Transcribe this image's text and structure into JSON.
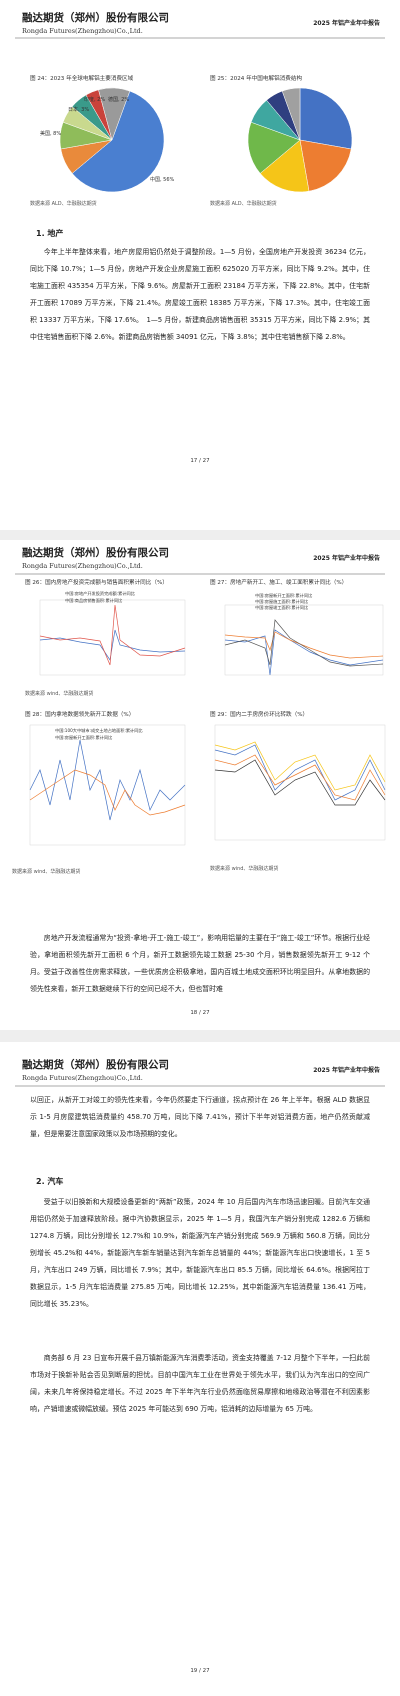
{
  "pages": [
    {
      "header": {
        "company_cn": "融达期货（郑州）股份有限公司",
        "company_en": "Rongda Futures(Zhengzhou)Co.,Ltd.",
        "report": "2025 年铝产业年中报告"
      },
      "figures": [
        {
          "caption": "图 24：2023 年全球电解铝主要消费区域",
          "labels": [
            "中国, 56%",
            "美国, 8%",
            "日本, 3%",
            "印度, 2%",
            "德国, 2%"
          ],
          "source": "数据来源 ALD、华融融达期货"
        },
        {
          "caption": "图 25：2024 年中国电解铝消费结构",
          "source": "数据来源 ALD、华融融达期货"
        }
      ],
      "section": "1. 地产",
      "paragraphs": [
        "今年上半年整体来看，地产房屋用铝仍然处于调整阶段。1—5 月份，全国房地产开发投资 36234 亿元，同比下降 10.7%；1—5 月份，房地产开发企业房屋施工面积 625020 万平方米，同比下降 9.2%。其中，住宅施工面积 435354 万平方米，下降 9.6%。房屋新开工面积 23184 万平方米，下降 22.8%。其中，住宅新开工面积 17089 万平方米，下降 21.4%。房屋竣工面积 18385 万平方米，下降 17.3%。其中，住宅竣工面积 13337 万平方米，下降 17.6%。　1—5 月份，新建商品房销售面积 35315 万平方米，同比下降 2.9%；其中住宅销售面积下降 2.6%。新建商品房销售额 34091 亿元，下降 3.8%；其中住宅销售额下降 2.8%。"
      ],
      "page_number": "17 / 27"
    },
    {
      "header": {
        "company_cn": "融达期货（郑州）股份有限公司",
        "company_en": "Rongda Futures(Zhengzhou)Co.,Ltd.",
        "report": "2025 年铝产业年中报告"
      },
      "figures": [
        {
          "caption": "图 26：国内房地产投资完成额与销售面积累计同比（%）",
          "legend": [
            "中国:房地产开发投资完成额:累计同比",
            "中国:商品房销售面积:累计同比"
          ],
          "source": "数据来源 wind、华融融达期货"
        },
        {
          "caption": "图 27：房地产新开工、施工、竣工面积累计同比（%）",
          "legend": [
            "中国:房屋新开工面积:累计同比",
            "中国:房屋施工面积:累计同比",
            "中国:房屋竣工面积:累计同比"
          ]
        },
        {
          "caption": "图 28：国内拿地数据领先新开工数据（%）",
          "legend": [
            "中国:100大中城市:成交土地占地面积:累计同比",
            "中国:房屋新开工面积:累计同比"
          ],
          "source": "数据来源 wind、华融融达期货"
        },
        {
          "caption": "图 29：国内二手房房价环比转跌（%）",
          "source": "数据来源 wind、华融融达期货"
        }
      ],
      "paragraphs": [
        "房地产开发流程通常为“投资-拿地-开工-施工-竣工”，影响用铝量的主要在于“施工-竣工”环节。根据行业经验，拿地面积领先新开工面积 6 个月，新开工数据领先竣工数据 25-30 个月，销售数据领先新开工 9-12 个月。受益于改善性住房需求释放，一些优质房企积极拿地，国内百城土地成交面积环比明显回升。从拿地数据的领先性来看，新开工数据继续下行的空间已经不大，但也暂时难"
      ],
      "page_number": "18 / 27"
    },
    {
      "header": {
        "company_cn": "融达期货（郑州）股份有限公司",
        "company_en": "Rongda Futures(Zhengzhou)Co.,Ltd.",
        "report": "2025 年铝产业年中报告"
      },
      "lead": "以回正，从新开工对竣工的领先性来看，今年仍然要走下行通道，拐点预计在 26 年上半年。根据 ALD 数据显示 1-5 月房屋建筑铝消费量约 458.70 万吨，同比下降 7.41%，预计下半年对铝消费方面，地产仍然贡献减量，但是需要注意国家政策以及市场预期的变化。",
      "section": "2. 汽车",
      "paragraphs": [
        "受益于以旧换新和大规模设备更新的“两新”政策，2024 年 10 月后国内汽车市场迅速回暖。目前汽车交通用铝仍然处于加速释放阶段。据中汽协数据显示，2025 年 1—5 月，我国汽车产销分别完成 1282.6 万辆和 1274.8 万辆，同比分别增长 12.7%和 10.9%，新能源汽车产销分别完成 569.9 万辆和 560.8 万辆，同比分别增长 45.2%和 44%，新能源汽车新车销量达到汽车新车总销量的 44%；新能源汽车出口快速增长，1 至 5 月，汽车出口 249 万辆，同比增长 7.9%；其中，新能源汽车出口 85.5 万辆，同比增长 64.6%。根据阿拉丁数据显示，1-5 月汽车铝消费量 275.85 万吨，同比增长 12.25%，其中新能源汽车铝消费量 136.41 万吨，同比增长 35.23%。",
        "商务部 6 月 23 日宣布开展千县万镇新能源汽车消费季活动，资金支持覆盖 7-12 月整个下半年，一扫此前市场对于换新补贴会否见到断层的担忧。目前中国汽车工业在世界处于领先水平，我们认为汽车出口的空间广阔，未来几年将保持稳定增长。不过 2025 年下半年汽车行业仍然面临贸易摩擦和地缘政治等潜在不利因素影响，产销增速或微幅放缓。预估 2025 年可能达到 690 万吨，铝消耗的边际增量为 65 万吨。"
      ],
      "page_number": "19 / 27"
    }
  ]
}
